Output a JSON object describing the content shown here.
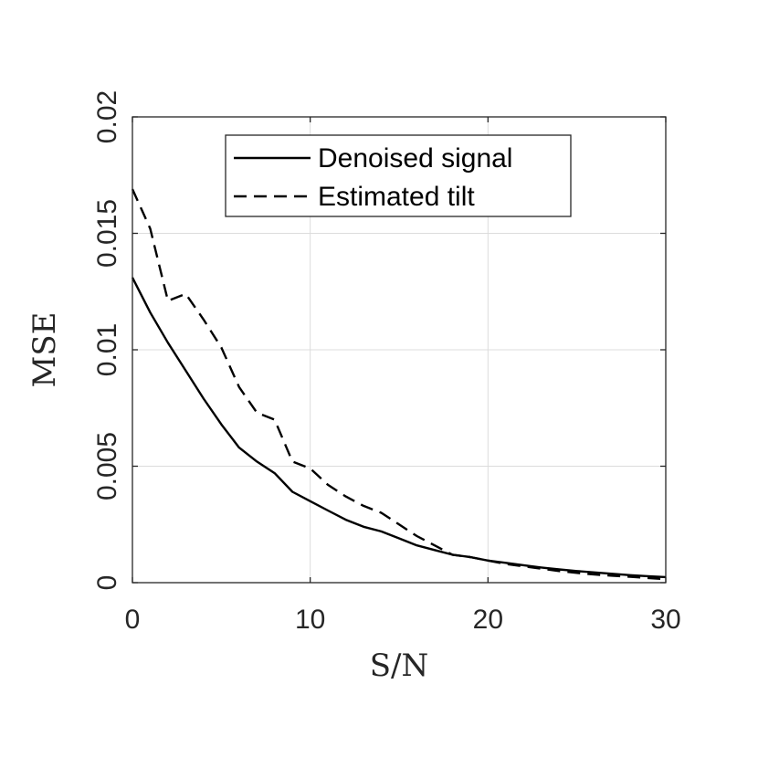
{
  "chart_data": {
    "type": "line",
    "xlabel": "S/N",
    "ylabel": "MSE",
    "xlim": [
      0,
      30
    ],
    "ylim": [
      0,
      0.02
    ],
    "xticks": [
      0,
      10,
      20,
      30
    ],
    "xtick_labels": [
      "0",
      "10",
      "20",
      "30"
    ],
    "yticks": [
      0,
      0.005,
      0.01,
      0.015,
      0.02
    ],
    "ytick_labels": [
      "0",
      "0.005",
      "0.01",
      "0.015",
      "0.02"
    ],
    "grid": true,
    "legend_position": "top",
    "x": [
      0,
      1,
      2,
      3,
      4,
      5,
      6,
      7,
      8,
      9,
      10,
      11,
      12,
      13,
      14,
      15,
      16,
      17,
      18,
      19,
      20,
      21,
      22,
      23,
      24,
      25,
      26,
      27,
      28,
      29,
      30
    ],
    "series": [
      {
        "name": "Denoised signal",
        "style": "solid",
        "color": "#000000",
        "values": [
          0.0131,
          0.0116,
          0.0103,
          0.0091,
          0.0079,
          0.0068,
          0.0058,
          0.0052,
          0.0047,
          0.0039,
          0.0035,
          0.0031,
          0.0027,
          0.0024,
          0.0022,
          0.0019,
          0.0016,
          0.0014,
          0.0012,
          0.0011,
          0.00095,
          0.00085,
          0.00075,
          0.00065,
          0.00057,
          0.0005,
          0.00044,
          0.00038,
          0.00032,
          0.00028,
          0.00024
        ]
      },
      {
        "name": "Estimated tilt",
        "style": "dashed",
        "color": "#000000",
        "values": [
          0.0169,
          0.0152,
          0.0121,
          0.0124,
          0.0113,
          0.0101,
          0.0084,
          0.0073,
          0.007,
          0.0052,
          0.0049,
          0.0042,
          0.0037,
          0.0033,
          0.003,
          0.0025,
          0.002,
          0.0016,
          0.0012,
          0.0011,
          0.00095,
          0.0008,
          0.0007,
          0.0006,
          0.0005,
          0.00042,
          0.00035,
          0.0003,
          0.00025,
          0.0002,
          0.00015
        ]
      }
    ]
  }
}
